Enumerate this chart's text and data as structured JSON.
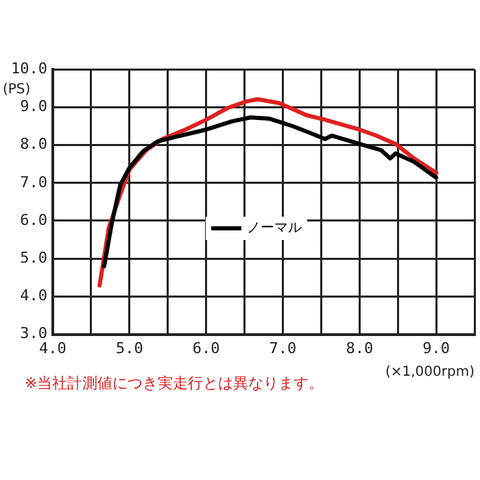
{
  "chart_data": {
    "type": "line",
    "xlabel": "(×1,000rpm)",
    "ylabel": "(PS)",
    "annotations": [
      "※当社計測値につき実走行とは異なります。"
    ],
    "xlim": [
      4,
      9.5
    ],
    "xticks": [
      {
        "value": 4,
        "label": "4.0"
      },
      {
        "value": 4.5,
        "label": null
      },
      {
        "value": 5,
        "label": "5.0"
      },
      {
        "value": 5.5,
        "label": null
      },
      {
        "value": 6,
        "label": "6.0"
      },
      {
        "value": 6.5,
        "label": null
      },
      {
        "value": 7,
        "label": "7.0"
      },
      {
        "value": 7.5,
        "label": null
      },
      {
        "value": 8,
        "label": "8.0"
      },
      {
        "value": 8.5,
        "label": null
      },
      {
        "value": 9,
        "label": "9.0"
      },
      {
        "value": 9.5,
        "label": null
      }
    ],
    "ylim": [
      3,
      10
    ],
    "yticks": [
      {
        "value": 3,
        "label": "3.0"
      },
      {
        "value": 4,
        "label": "4.0"
      },
      {
        "value": 5,
        "label": "5.0"
      },
      {
        "value": 6,
        "label": "6.0"
      },
      {
        "value": 7,
        "label": "7.0"
      },
      {
        "value": 8,
        "label": "8.0"
      },
      {
        "value": 9,
        "label": "9.0"
      },
      {
        "value": 10,
        "label": "10.0"
      }
    ],
    "grid": true,
    "legend": "center",
    "marker": "none",
    "line_style": "solid",
    "series": [
      {
        "name": "ノーマル",
        "color": "#000000",
        "x": [
          4.67,
          4.77,
          4.88,
          5.0,
          5.18,
          5.37,
          5.61,
          6.0,
          6.34,
          6.58,
          6.82,
          7.13,
          7.37,
          7.55,
          7.64,
          7.79,
          8.0,
          8.28,
          8.4,
          8.47,
          8.71,
          9.0
        ],
        "values": [
          4.8,
          5.94,
          6.95,
          7.4,
          7.84,
          8.1,
          8.22,
          8.41,
          8.63,
          8.73,
          8.7,
          8.5,
          8.31,
          8.16,
          8.25,
          8.16,
          8.03,
          7.87,
          7.65,
          7.78,
          7.56,
          7.14
        ]
      },
      {
        "color": "#e02020",
        "x": [
          4.61,
          4.73,
          4.88,
          5.0,
          5.22,
          5.43,
          5.73,
          6.0,
          6.28,
          6.52,
          6.67,
          6.95,
          7.31,
          7.55,
          8.0,
          8.22,
          8.47,
          8.71,
          9.0
        ],
        "values": [
          4.29,
          5.81,
          6.7,
          7.36,
          7.87,
          8.16,
          8.41,
          8.67,
          8.98,
          9.15,
          9.21,
          9.11,
          8.79,
          8.67,
          8.41,
          8.25,
          8.03,
          7.65,
          7.27
        ]
      }
    ]
  }
}
